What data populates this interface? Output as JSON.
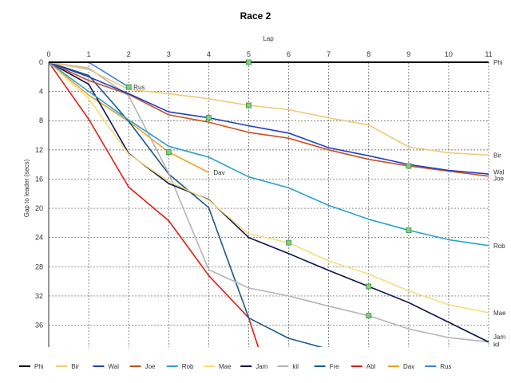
{
  "chart_data": {
    "type": "line",
    "title": "Race 2",
    "xlabel": "Lap",
    "ylabel": "Gap to leader (secs)",
    "x": [
      0,
      1,
      2,
      3,
      4,
      5,
      6,
      7,
      8,
      9,
      10,
      11
    ],
    "xlim": [
      0,
      11
    ],
    "ylim": [
      0,
      39
    ],
    "y_inverted": true,
    "x_axis_position": "top",
    "grid": true,
    "legend_position": "bottom",
    "xticks": [
      "0",
      "1",
      "2",
      "3",
      "4",
      "5",
      "6",
      "7",
      "8",
      "9",
      "10",
      "11"
    ],
    "yticks": [
      "0",
      "4",
      "8",
      "12",
      "16",
      "20",
      "24",
      "28",
      "32",
      "36"
    ],
    "series": [
      {
        "name": "Phi",
        "color": "#000000",
        "x": [
          0,
          1,
          2,
          3,
          4,
          5,
          6,
          7,
          8,
          9,
          10,
          11
        ],
        "values": [
          0,
          0,
          0,
          0,
          0,
          0,
          0,
          0,
          0,
          0,
          0,
          0
        ]
      },
      {
        "name": "Bir",
        "color": "#f0c878",
        "x": [
          0,
          1,
          2,
          3,
          4,
          5,
          6,
          7,
          8,
          9,
          10,
          11
        ],
        "values": [
          0,
          1.0,
          3.7,
          4.3,
          5.0,
          5.9,
          6.5,
          7.6,
          8.6,
          11.6,
          12.4,
          12.7
        ]
      },
      {
        "name": "Wal",
        "color": "#1f3fc8",
        "x": [
          0,
          1,
          2,
          3,
          4,
          5,
          6,
          7,
          8,
          9,
          10,
          11
        ],
        "values": [
          0,
          2.0,
          4.3,
          6.8,
          7.6,
          8.7,
          9.7,
          11.7,
          12.8,
          14.0,
          14.8,
          15.3
        ]
      },
      {
        "name": "Joe",
        "color": "#c8501e",
        "x": [
          0,
          1,
          2,
          3,
          4,
          5,
          6,
          7,
          8,
          9,
          10,
          11
        ],
        "values": [
          0,
          2.5,
          4.4,
          7.2,
          8.2,
          9.6,
          10.4,
          12.0,
          13.3,
          14.2,
          14.9,
          15.6
        ]
      },
      {
        "name": "Rob",
        "color": "#2b9fd8",
        "x": [
          0,
          1,
          2,
          3,
          4,
          5,
          6,
          7,
          8,
          9,
          10,
          11
        ],
        "values": [
          0,
          4.0,
          7.9,
          11.5,
          13.0,
          15.7,
          17.2,
          19.6,
          21.5,
          23.0,
          24.3,
          25.1
        ]
      },
      {
        "name": "Mae",
        "color": "#f5dd7a",
        "x": [
          0,
          1,
          2,
          3,
          4,
          5,
          6,
          7,
          8,
          9,
          10,
          11
        ],
        "values": [
          0,
          5.0,
          12.6,
          16.3,
          18.9,
          23.5,
          24.7,
          27.2,
          29.0,
          31.3,
          33.2,
          34.3
        ]
      },
      {
        "name": "Jam",
        "color": "#0a1450",
        "x": [
          0,
          1,
          2,
          3,
          4,
          5,
          6,
          7,
          8,
          9,
          10,
          11
        ],
        "values": [
          0,
          3.0,
          12.5,
          16.6,
          18.8,
          24.0,
          26.2,
          28.5,
          30.7,
          32.9,
          35.6,
          38.3
        ]
      },
      {
        "name": "kil",
        "color": "#b4b4b4",
        "x": [
          0,
          1,
          2,
          3,
          4,
          5,
          6,
          7,
          8,
          9,
          10,
          11
        ],
        "values": [
          0,
          0.8,
          4.6,
          15.2,
          28.4,
          30.9,
          32.0,
          33.4,
          34.7,
          36.5,
          37.7,
          38.3
        ]
      },
      {
        "name": "Fre",
        "color": "#1a5a8a",
        "x": [
          0,
          1,
          2,
          3,
          4,
          5,
          6,
          7,
          8
        ],
        "values": [
          0,
          1.8,
          8.1,
          15.3,
          19.9,
          35.0,
          37.8,
          39.3,
          40.5
        ]
      },
      {
        "name": "Abl",
        "color": "#e01e14",
        "x": [
          0,
          1,
          2,
          3,
          4,
          5,
          5.25
        ],
        "values": [
          0,
          7.8,
          17.1,
          21.7,
          29.2,
          35.0,
          39.2
        ]
      },
      {
        "name": "Dav",
        "color": "#f0a020",
        "x": [
          0,
          1,
          2,
          3,
          4
        ],
        "values": [
          0,
          4.5,
          8.1,
          12.3,
          15.1
        ]
      },
      {
        "name": "Rus",
        "color": "#3a7fe8",
        "x": [
          0,
          1,
          2
        ],
        "values": [
          0,
          0,
          3.4
        ]
      }
    ],
    "end_labels": [
      {
        "text": "Phi",
        "x": 11,
        "y": 0
      },
      {
        "text": "Bir",
        "x": 11,
        "y": 12.7
      },
      {
        "text": "Wal",
        "x": 11,
        "y": 15.0
      },
      {
        "text": "Joe",
        "x": 11,
        "y": 15.9
      },
      {
        "text": "Rob",
        "x": 11,
        "y": 25.1
      },
      {
        "text": "Mae",
        "x": 11,
        "y": 34.3
      },
      {
        "text": "Jam",
        "x": 11,
        "y": 37.6
      },
      {
        "text": "kil",
        "x": 11,
        "y": 38.6
      },
      {
        "text": "Rus",
        "x": 2,
        "y": 3.4
      },
      {
        "text": "Dav",
        "x": 4,
        "y": 15.1
      }
    ],
    "markers": [
      {
        "x": 2,
        "y": 3.4
      },
      {
        "x": 3,
        "y": 12.3
      },
      {
        "x": 4,
        "y": 7.6
      },
      {
        "x": 5,
        "y": 0
      },
      {
        "x": 5,
        "y": 5.9
      },
      {
        "x": 6,
        "y": 24.7
      },
      {
        "x": 8,
        "y": 30.7
      },
      {
        "x": 8,
        "y": 34.7
      },
      {
        "x": 9,
        "y": 14.2
      },
      {
        "x": 9,
        "y": 23.0
      }
    ],
    "marker_color": "#7fd07f"
  }
}
